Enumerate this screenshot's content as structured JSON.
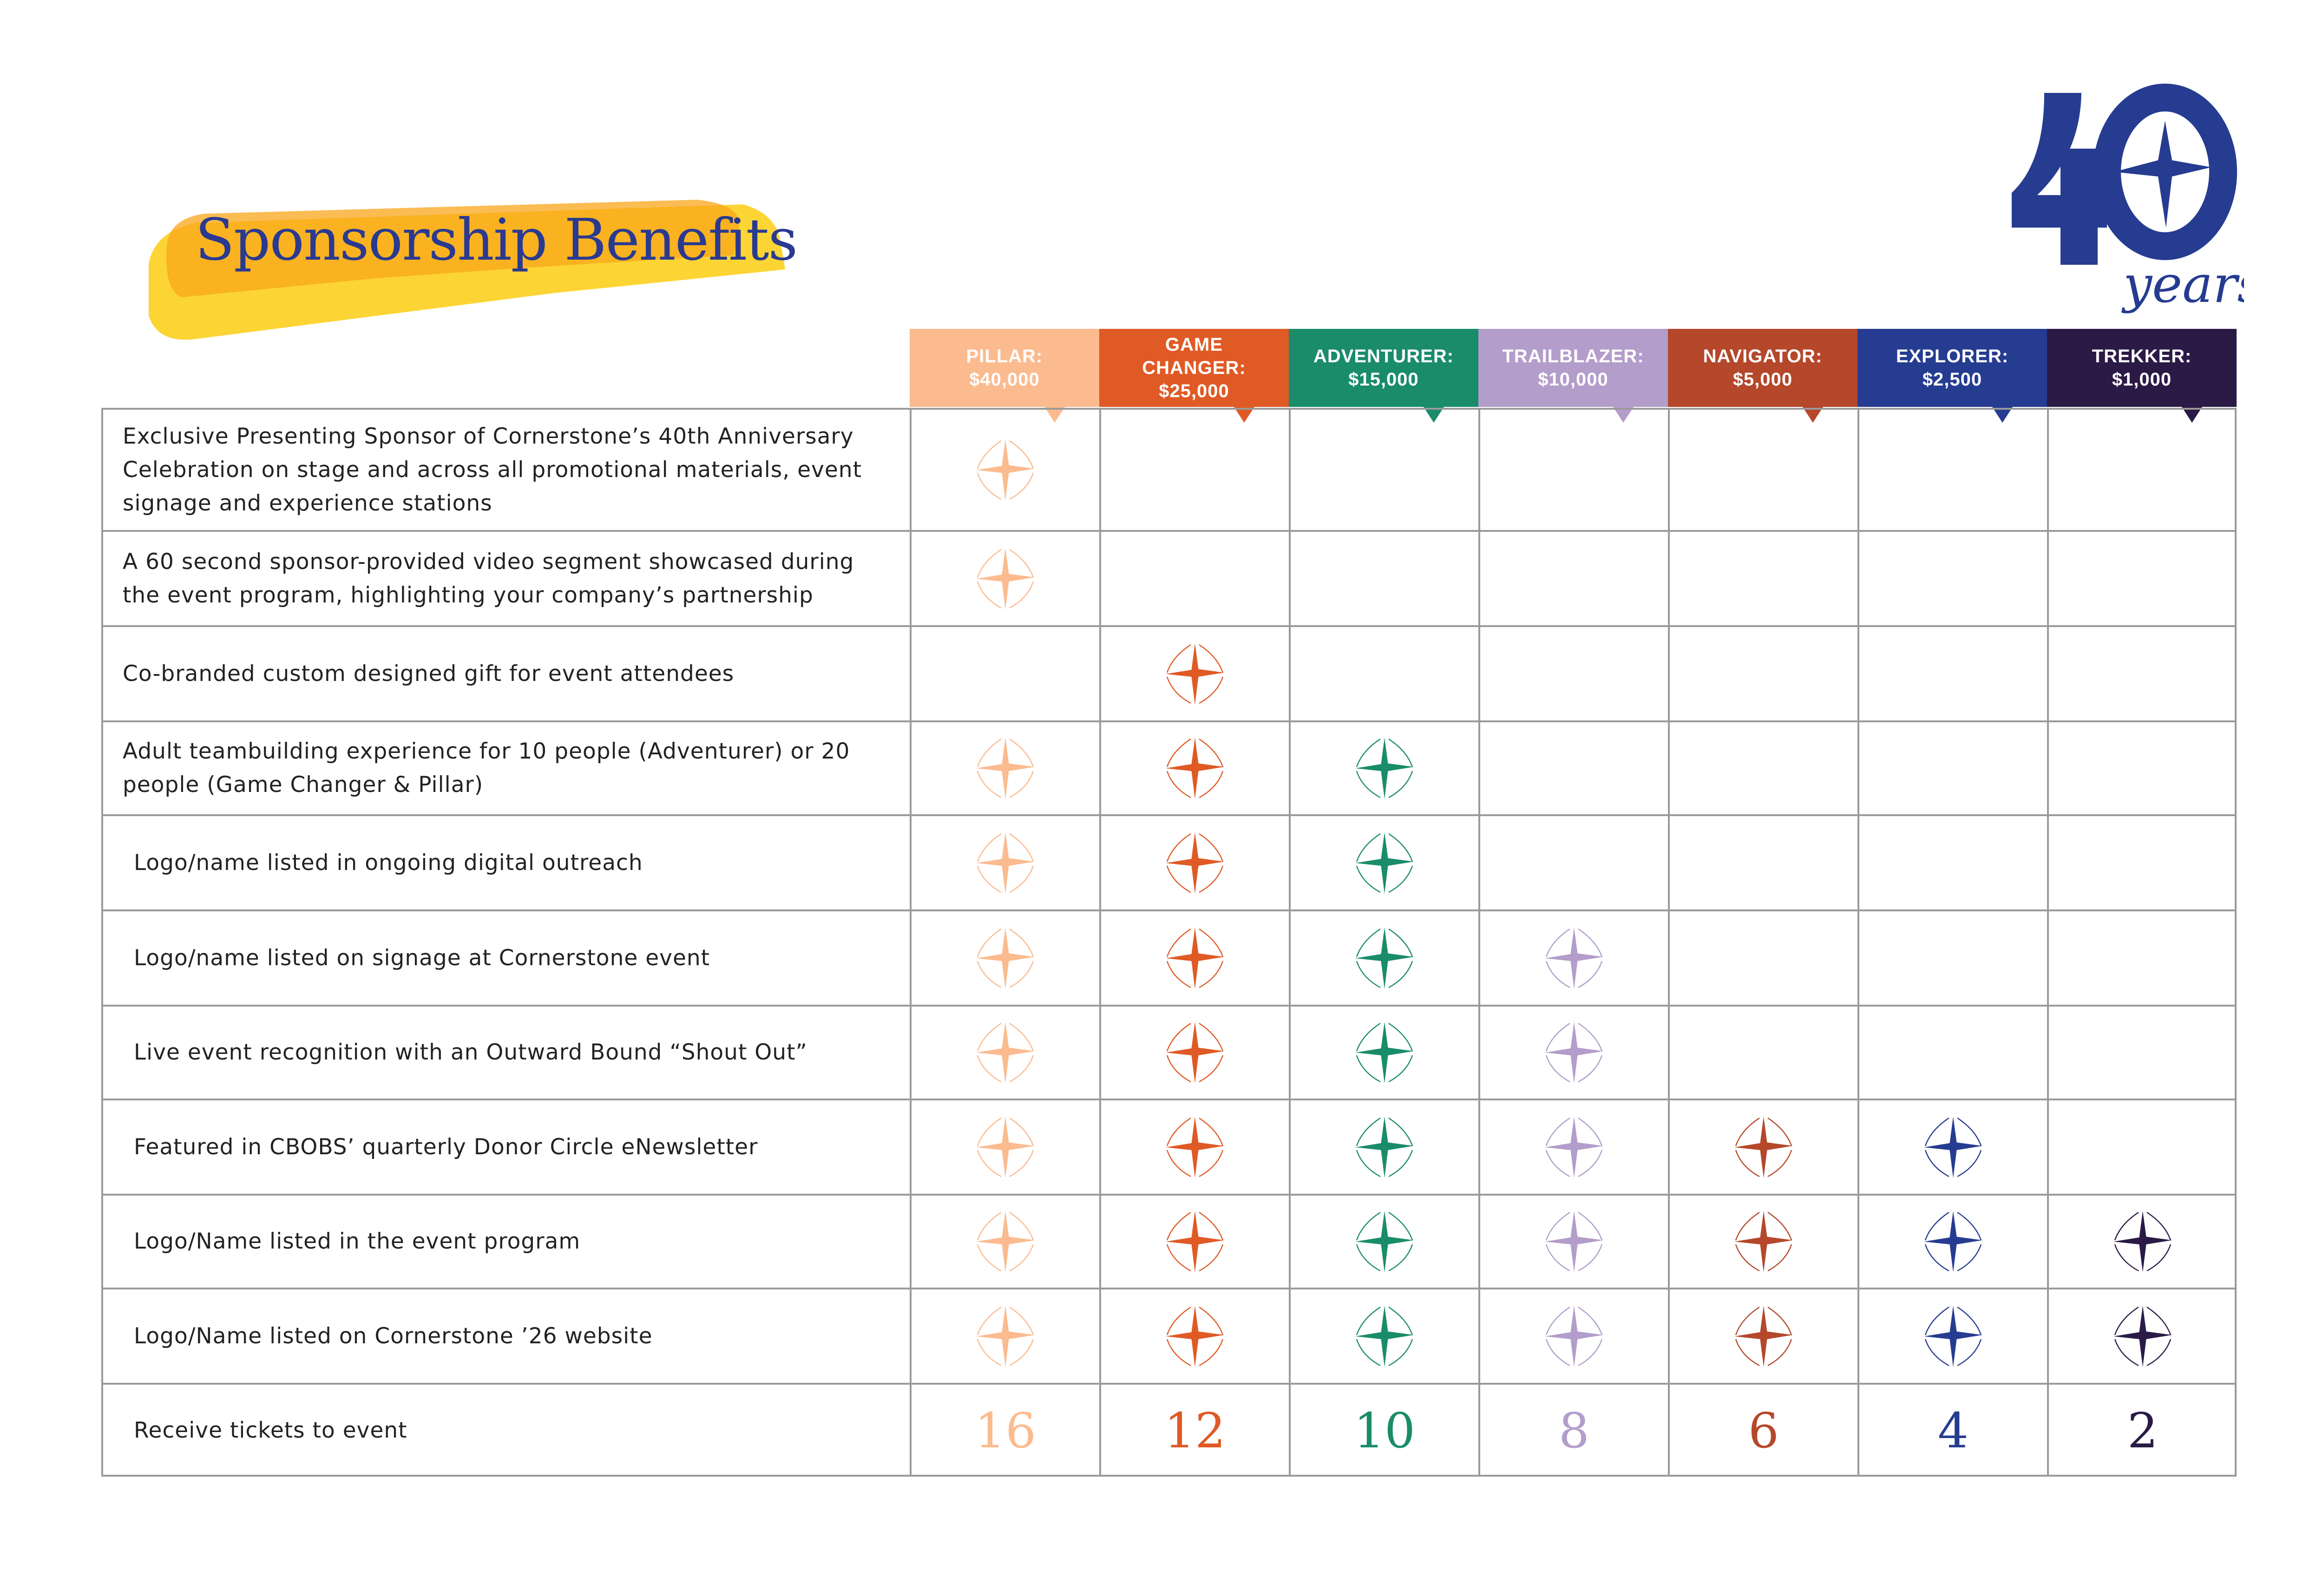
{
  "title": "Sponsorship Benefits",
  "logo": {
    "number": "40",
    "word": "years",
    "color": "#263c91"
  },
  "tiers": [
    {
      "name": "PILLAR:",
      "price": "$40,000",
      "color": "#fbbb8f"
    },
    {
      "name": "GAME CHANGER:",
      "price": "$25,000",
      "color": "#e05a25"
    },
    {
      "name": "ADVENTURER:",
      "price": "$15,000",
      "color": "#1a8c6a"
    },
    {
      "name": "TRAILBLAZER:",
      "price": "$10,000",
      "color": "#b39dca"
    },
    {
      "name": "NAVIGATOR:",
      "price": "$5,000",
      "color": "#b5472a"
    },
    {
      "name": "EXPLORER:",
      "price": "$2,500",
      "color": "#263c91"
    },
    {
      "name": "TREKKER:",
      "price": "$1,000",
      "color": "#2a1a45"
    }
  ],
  "benefits": [
    {
      "label": "Exclusive Presenting Sponsor of Cornerstone’s 40th Anniversary Celebration on stage and across all promotional materials, event signage and experience stations",
      "included": [
        true,
        false,
        false,
        false,
        false,
        false,
        false
      ]
    },
    {
      "label": "A 60 second sponsor-provided video segment showcased during the event program, highlighting your company’s partnership",
      "included": [
        true,
        false,
        false,
        false,
        false,
        false,
        false
      ]
    },
    {
      "label": "Co-branded custom designed gift for event attendees",
      "included": [
        false,
        true,
        false,
        false,
        false,
        false,
        false
      ]
    },
    {
      "label": "Adult teambuilding experience for 10 people (Adventurer) or 20 people (Game Changer & Pillar)",
      "included": [
        true,
        true,
        true,
        false,
        false,
        false,
        false
      ]
    },
    {
      "label": "Logo/name listed in ongoing digital outreach",
      "included": [
        true,
        true,
        true,
        false,
        false,
        false,
        false
      ]
    },
    {
      "label": "Logo/name listed on signage at Cornerstone event",
      "included": [
        true,
        true,
        true,
        true,
        false,
        false,
        false
      ]
    },
    {
      "label": "Live event recognition with an Outward Bound “Shout Out”",
      "included": [
        true,
        true,
        true,
        true,
        false,
        false,
        false
      ]
    },
    {
      "label": "Featured in CBOBS’ quarterly Donor Circle eNewsletter",
      "included": [
        true,
        true,
        true,
        true,
        true,
        true,
        false
      ]
    },
    {
      "label": "Logo/Name listed in the event program",
      "included": [
        true,
        true,
        true,
        true,
        true,
        true,
        true
      ]
    },
    {
      "label": "Logo/Name listed on Cornerstone ’26 website",
      "included": [
        true,
        true,
        true,
        true,
        true,
        true,
        true
      ]
    }
  ],
  "tickets": {
    "label": "Receive tickets to event",
    "values": [
      "16",
      "12",
      "10",
      "8",
      "6",
      "4",
      "2"
    ]
  },
  "icon": "compass-star-icon"
}
